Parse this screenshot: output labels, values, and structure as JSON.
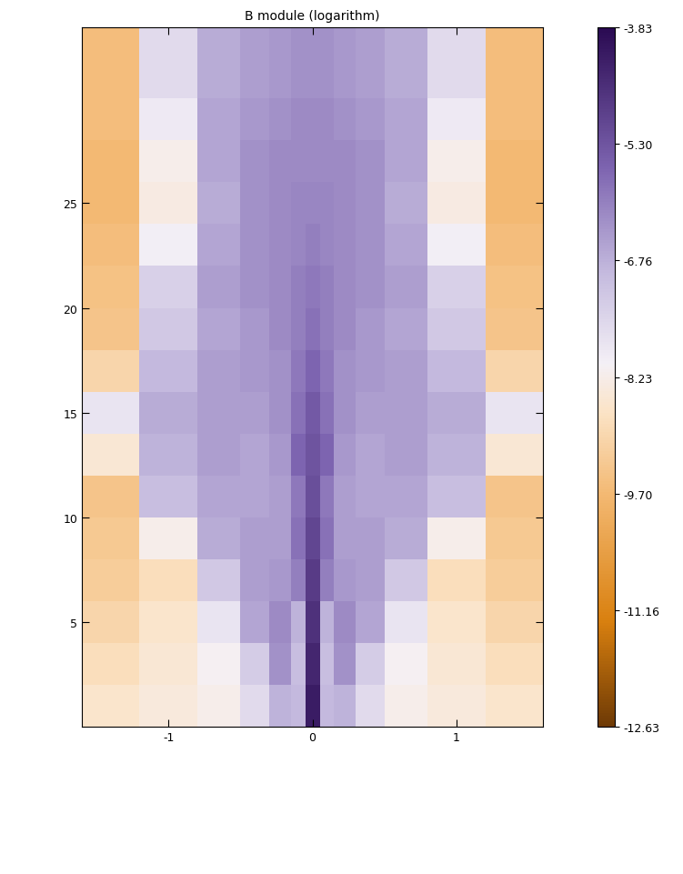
{
  "chart_data": {
    "type": "heatmap",
    "title": "B module (logarithm)",
    "xlim": [
      -1.6,
      1.6
    ],
    "ylim": [
      0,
      33.4
    ],
    "xticks": [
      -1,
      0,
      1
    ],
    "yticks": [
      5,
      10,
      15,
      20,
      25
    ],
    "x_edges": [
      -1.6,
      -1.2,
      -0.8,
      -0.5,
      -0.3,
      -0.15,
      -0.05,
      0.05,
      0.15,
      0.3,
      0.5,
      0.8,
      1.2,
      1.6
    ],
    "y_edges": [
      0,
      2,
      4,
      6,
      8,
      10,
      12,
      14,
      16,
      18,
      20,
      22,
      24,
      26,
      28,
      30,
      33.4
    ],
    "cells": [
      [
        -8.6,
        -8.4,
        -8.2,
        -7.6,
        -6.8,
        -6.9,
        -4.2,
        -6.9,
        -6.8,
        -7.6,
        -8.2,
        -8.4,
        -8.6
      ],
      [
        -8.8,
        -8.5,
        -8.1,
        -7.3,
        -6.3,
        -7.0,
        -4.4,
        -7.0,
        -6.3,
        -7.3,
        -8.1,
        -8.5,
        -8.8
      ],
      [
        -9.0,
        -8.6,
        -7.8,
        -6.6,
        -6.2,
        -6.8,
        -4.6,
        -6.8,
        -6.2,
        -6.6,
        -7.8,
        -8.6,
        -9.0
      ],
      [
        -9.2,
        -8.8,
        -7.2,
        -6.5,
        -6.4,
        -6.0,
        -4.8,
        -6.0,
        -6.4,
        -6.5,
        -7.2,
        -8.8,
        -9.2
      ],
      [
        -9.3,
        -8.2,
        -6.7,
        -6.5,
        -6.5,
        -5.8,
        -5.0,
        -5.8,
        -6.5,
        -6.5,
        -6.7,
        -8.2,
        -9.3
      ],
      [
        -9.4,
        -7.0,
        -6.6,
        -6.6,
        -6.5,
        -5.9,
        -5.2,
        -5.9,
        -6.5,
        -6.6,
        -6.6,
        -7.0,
        -9.4
      ],
      [
        -8.5,
        -6.8,
        -6.5,
        -6.6,
        -6.4,
        -5.6,
        -5.3,
        -5.6,
        -6.4,
        -6.6,
        -6.5,
        -6.8,
        -8.5
      ],
      [
        -7.8,
        -6.7,
        -6.5,
        -6.5,
        -6.3,
        -5.8,
        -5.4,
        -5.8,
        -6.3,
        -6.5,
        -6.5,
        -6.7,
        -7.8
      ],
      [
        -9.0,
        -6.9,
        -6.5,
        -6.4,
        -6.3,
        -5.9,
        -5.6,
        -5.9,
        -6.3,
        -6.4,
        -6.5,
        -6.9,
        -9.0
      ],
      [
        -9.4,
        -7.2,
        -6.6,
        -6.4,
        -6.2,
        -6.0,
        -5.8,
        -6.0,
        -6.2,
        -6.4,
        -6.6,
        -7.2,
        -9.4
      ],
      [
        -9.5,
        -7.4,
        -6.5,
        -6.3,
        -6.2,
        -6.0,
        -5.9,
        -6.0,
        -6.2,
        -6.3,
        -6.5,
        -7.4,
        -9.5
      ],
      [
        -9.6,
        -8.0,
        -6.6,
        -6.3,
        -6.2,
        -6.1,
        -6.0,
        -6.1,
        -6.2,
        -6.3,
        -6.6,
        -8.0,
        -9.6
      ],
      [
        -9.7,
        -8.3,
        -6.7,
        -6.3,
        -6.2,
        -6.1,
        -6.1,
        -6.1,
        -6.2,
        -6.3,
        -6.7,
        -8.3,
        -9.7
      ],
      [
        -9.7,
        -8.2,
        -6.6,
        -6.3,
        -6.2,
        -6.2,
        -6.2,
        -6.2,
        -6.2,
        -6.3,
        -6.6,
        -8.2,
        -9.7
      ],
      [
        -9.6,
        -7.9,
        -6.6,
        -6.4,
        -6.3,
        -6.2,
        -6.2,
        -6.2,
        -6.3,
        -6.4,
        -6.6,
        -7.9,
        -9.6
      ],
      [
        -9.6,
        -7.6,
        -6.7,
        -6.5,
        -6.4,
        -6.3,
        -6.3,
        -6.3,
        -6.4,
        -6.5,
        -6.7,
        -7.6,
        -9.6
      ]
    ],
    "colorbar_range": [
      -12.63,
      -3.83
    ],
    "colorbar_ticks": [
      -3.83,
      {
        "value": -5.3,
        "label": "-5.30"
      },
      -6.76,
      -8.23,
      {
        "value": -9.7,
        "label": "-9.70"
      },
      -11.16,
      -12.63
    ]
  }
}
